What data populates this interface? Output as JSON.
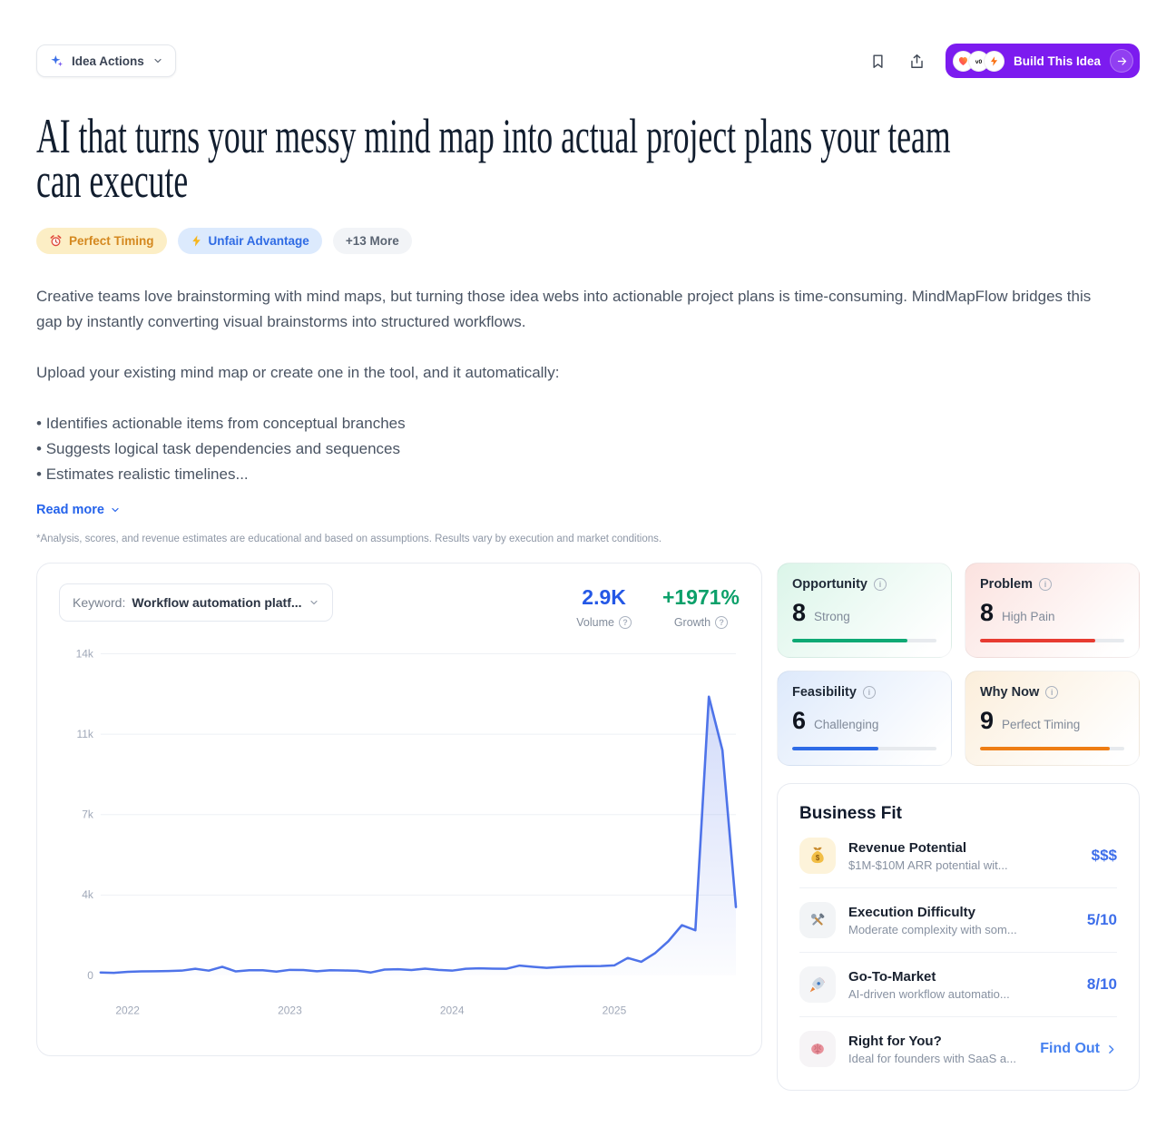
{
  "toolbar": {
    "idea_actions_label": "Idea Actions",
    "build_button_label": "Build This Idea"
  },
  "title_lines": [
    "AI that turns your messy mind map into actual project plans your team",
    "can execute"
  ],
  "tags": [
    {
      "label": "Perfect Timing",
      "icon": "alarm-clock-icon",
      "bg": "#fceec5",
      "color": "#d4881f"
    },
    {
      "label": "Unfair Advantage",
      "icon": "lightning-icon",
      "bg": "#dceafd",
      "color": "#2f6be4"
    },
    {
      "label": "+13 More",
      "icon": "",
      "bg": "#f2f4f7",
      "color": "#5b6573"
    }
  ],
  "description": {
    "paragraph1": "Creative teams love brainstorming with mind maps, but turning those idea webs into actionable project plans is time-consuming. MindMapFlow bridges this gap by instantly converting visual brainstorms into structured workflows.",
    "paragraph2": "Upload your existing mind map or create one in the tool, and it automatically:",
    "bullets": [
      "Identifies actionable items from conceptual branches",
      "Suggests logical task dependencies and sequences",
      "Estimates realistic timelines..."
    ],
    "read_more_label": "Read more",
    "disclaimer": "*Analysis, scores, and revenue estimates are educational and based on assumptions. Results vary by execution and market conditions."
  },
  "trend": {
    "keyword_label": "Keyword:",
    "keyword_value": "Workflow automation platf...",
    "volume_value": "2.9K",
    "volume_label": "Volume",
    "growth_value": "+1971%",
    "growth_label": "Growth"
  },
  "chart_data": {
    "type": "area",
    "title": "Keyword search volume trend",
    "x": [
      "2021-11",
      "2021-12",
      "2022-01",
      "2022-02",
      "2022-03",
      "2022-04",
      "2022-05",
      "2022-06",
      "2022-07",
      "2022-08",
      "2022-09",
      "2022-10",
      "2022-11",
      "2022-12",
      "2023-01",
      "2023-02",
      "2023-03",
      "2023-04",
      "2023-05",
      "2023-06",
      "2023-07",
      "2023-08",
      "2023-09",
      "2023-10",
      "2023-11",
      "2023-12",
      "2024-01",
      "2024-02",
      "2024-03",
      "2024-04",
      "2024-05",
      "2024-06",
      "2024-07",
      "2024-08",
      "2024-09",
      "2024-10",
      "2024-11",
      "2024-12",
      "2025-01",
      "2025-02",
      "2025-03",
      "2025-04",
      "2025-05",
      "2025-06",
      "2025-07",
      "2025-08",
      "2025-09",
      "2025-10"
    ],
    "values": [
      150,
      130,
      180,
      200,
      210,
      220,
      240,
      330,
      240,
      430,
      200,
      260,
      260,
      190,
      280,
      270,
      210,
      260,
      250,
      230,
      150,
      290,
      310,
      270,
      340,
      280,
      240,
      330,
      350,
      340,
      330,
      490,
      430,
      380,
      420,
      450,
      460,
      470,
      500,
      870,
      680,
      1100,
      1700,
      2500,
      2250,
      12400,
      10200,
      3400
    ],
    "x_tick_labels": [
      "2022",
      "2023",
      "2024",
      "2025"
    ],
    "x_tick_indices": [
      2,
      14,
      26,
      38
    ],
    "y_ticks": [
      0,
      4000,
      7000,
      11000,
      14000
    ],
    "y_tick_labels": [
      "0",
      "4k",
      "7k",
      "11k",
      "14k"
    ],
    "ylim": [
      0,
      14000
    ],
    "grid": true,
    "legend": false,
    "line_color": "#4e73e9",
    "fill_color": "#5d7deb"
  },
  "scores": [
    {
      "title": "Opportunity",
      "score": 8,
      "label": "Strong",
      "bar_color": "#0ea974",
      "bg_tint": "#dbf5e9"
    },
    {
      "title": "Problem",
      "score": 8,
      "label": "High Pain",
      "bar_color": "#e73b31",
      "bg_tint": "#fbe2df"
    },
    {
      "title": "Feasibility",
      "score": 6,
      "label": "Challenging",
      "bar_color": "#2e6be6",
      "bg_tint": "#dde9fb"
    },
    {
      "title": "Why Now",
      "score": 9,
      "label": "Perfect Timing",
      "bar_color": "#ee7d14",
      "bg_tint": "#fbeedb"
    }
  ],
  "business_fit": {
    "title": "Business Fit",
    "rows": [
      {
        "icon": "money-bag-icon",
        "name": "Revenue Potential",
        "description": "$1M-$10M ARR potential wit...",
        "value": "$$$"
      },
      {
        "icon": "tools-icon",
        "name": "Execution Difficulty",
        "description": "Moderate complexity with som...",
        "value": "5/10"
      },
      {
        "icon": "rocket-icon",
        "name": "Go-To-Market",
        "description": "AI-driven workflow automatio...",
        "value": "8/10"
      },
      {
        "icon": "brain-icon",
        "name": "Right for You?",
        "description": "Ideal for founders with SaaS a...",
        "value": "Find Out"
      }
    ]
  },
  "colors": {
    "accent_purple": "#7c1bef",
    "link_blue": "#2563eb",
    "value_blue": "#3d6eea",
    "volume_blue": "#2458e6",
    "growth_green": "#0ca06a",
    "chart_line": "#4e73e9"
  }
}
